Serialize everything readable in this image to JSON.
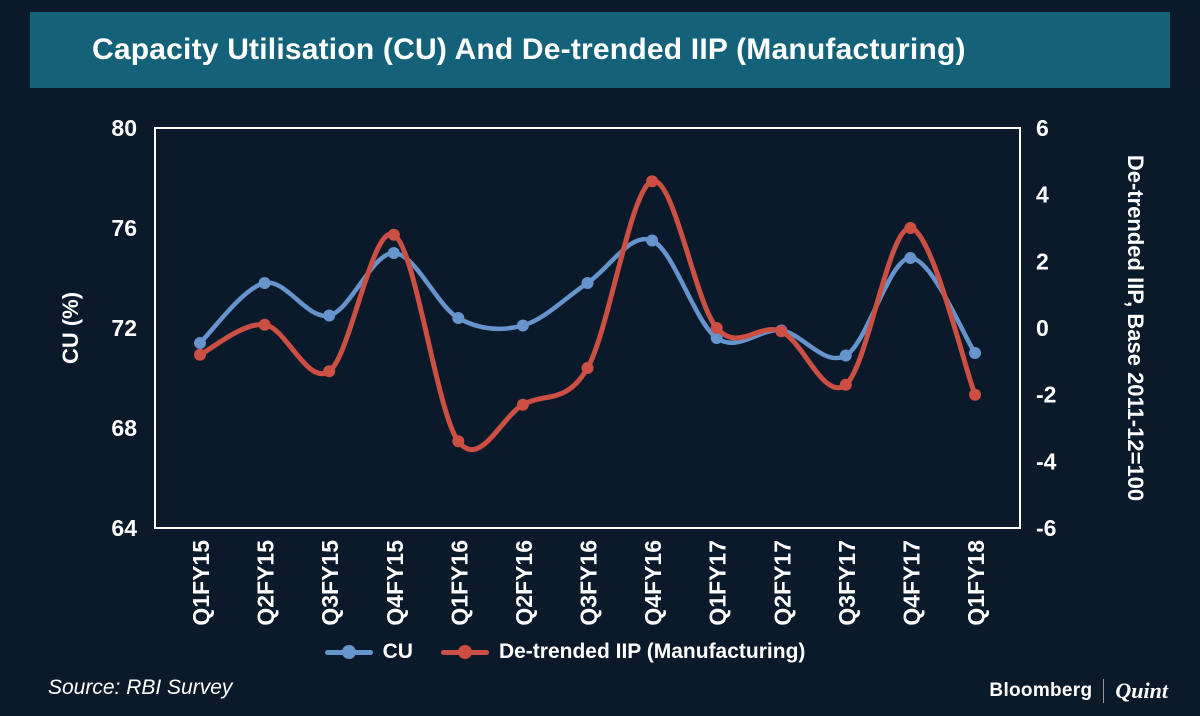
{
  "header": {
    "title": "Capacity Utilisation (CU) And De-trended IIP (Manufacturing)"
  },
  "chart_data": {
    "type": "line",
    "categories": [
      "Q1FY15",
      "Q2FY15",
      "Q3FY15",
      "Q4FY15",
      "Q1FY16",
      "Q2FY16",
      "Q3FY16",
      "Q4FY16",
      "Q1FY17",
      "Q2FY17",
      "Q3FY17",
      "Q4FY17",
      "Q1FY18"
    ],
    "series": [
      {
        "name": "CU",
        "axis": "left",
        "color": "#6694cc",
        "values": [
          71.4,
          73.8,
          72.5,
          75.0,
          72.4,
          72.1,
          73.8,
          75.5,
          71.6,
          71.9,
          70.9,
          74.8,
          71.0
        ]
      },
      {
        "name": "De-trended IIP (Manufacturing)",
        "axis": "right",
        "color": "#cc4f43",
        "values": [
          -0.8,
          0.1,
          -1.3,
          2.8,
          -3.4,
          -2.3,
          -1.2,
          4.4,
          0.0,
          -0.1,
          -1.7,
          3.0,
          -2.0
        ]
      }
    ],
    "left_axis": {
      "label": "CU (%)",
      "min": 64,
      "max": 80,
      "ticks": [
        80,
        76,
        72,
        68,
        64
      ]
    },
    "right_axis": {
      "label": "De-trended IIP, Base 2011-12=100",
      "min": -6,
      "max": 6,
      "ticks": [
        6,
        4,
        2,
        0,
        -2,
        -4,
        -6
      ]
    },
    "grid": false,
    "legend_position": "bottom",
    "marker": "circle"
  },
  "footer": {
    "source": "Source: RBI Survey",
    "brand_left": "Bloomberg",
    "brand_right": "Quint"
  },
  "colors": {
    "background": "#0b1a2a",
    "header": "#146279",
    "cu": "#6694cc",
    "iip": "#cc4f43",
    "text": "#ffffff",
    "plot_border": "#ffffff"
  }
}
